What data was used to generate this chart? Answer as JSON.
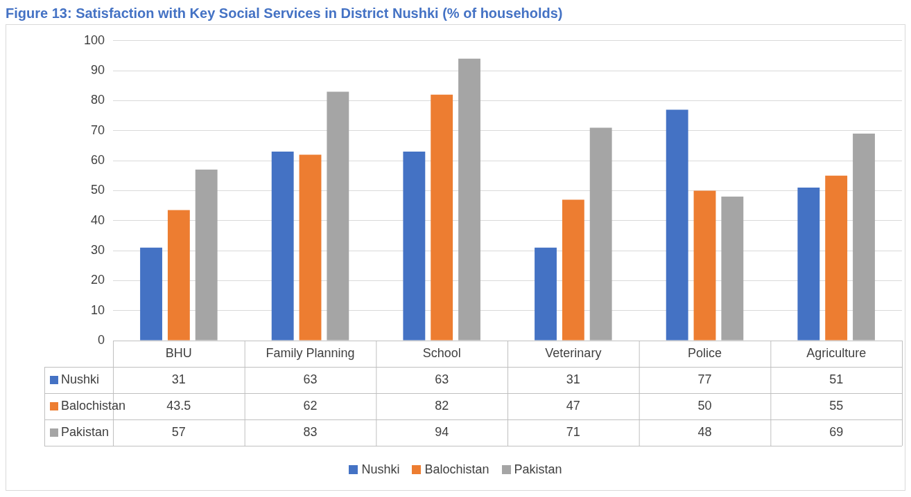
{
  "chart_data": {
    "type": "bar",
    "title": "Figure 13: Satisfaction with Key Social Services in District Nushki (% of households)",
    "categories": [
      "BHU",
      "Family Planning",
      "School",
      "Veterinary",
      "Police",
      "Agriculture"
    ],
    "series": [
      {
        "name": "Nushki",
        "color": "#4472c4",
        "values": [
          31,
          63,
          63,
          31,
          77,
          51
        ]
      },
      {
        "name": "Balochistan",
        "color": "#ed7d31",
        "values": [
          43.5,
          62,
          82,
          47,
          50,
          55
        ]
      },
      {
        "name": "Pakistan",
        "color": "#a5a5a5",
        "values": [
          57,
          83,
          94,
          71,
          48,
          69
        ]
      }
    ],
    "ylim": [
      0,
      100
    ],
    "yticks": [
      0,
      10,
      20,
      30,
      40,
      50,
      60,
      70,
      80,
      90,
      100
    ],
    "grid": "y",
    "legend": "bottom",
    "data_labels": true
  }
}
